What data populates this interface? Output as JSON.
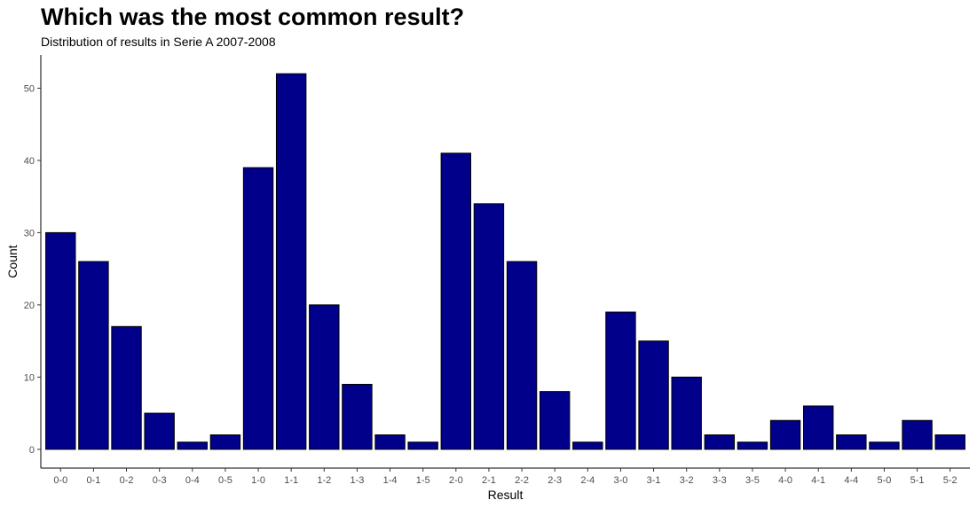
{
  "chart_data": {
    "type": "bar",
    "title": "Which was the most common result?",
    "subtitle": "Distribution of results in Serie A 2007-2008",
    "xlabel": "Result",
    "ylabel": "Count",
    "categories": [
      "0-0",
      "0-1",
      "0-2",
      "0-3",
      "0-4",
      "0-5",
      "1-0",
      "1-1",
      "1-2",
      "1-3",
      "1-4",
      "1-5",
      "2-0",
      "2-1",
      "2-2",
      "2-3",
      "2-4",
      "3-0",
      "3-1",
      "3-2",
      "3-3",
      "3-5",
      "4-0",
      "4-1",
      "4-4",
      "5-0",
      "5-1",
      "5-2"
    ],
    "values": [
      30,
      26,
      17,
      5,
      1,
      2,
      39,
      52,
      20,
      9,
      2,
      1,
      41,
      34,
      26,
      8,
      1,
      19,
      15,
      10,
      2,
      1,
      4,
      6,
      2,
      1,
      4,
      2
    ],
    "yticks": [
      0,
      10,
      20,
      30,
      40,
      50
    ],
    "ylim": [
      -2.6,
      54.6
    ],
    "bar_color": "#00008B",
    "bar_outline": "#000000",
    "grid": false
  }
}
